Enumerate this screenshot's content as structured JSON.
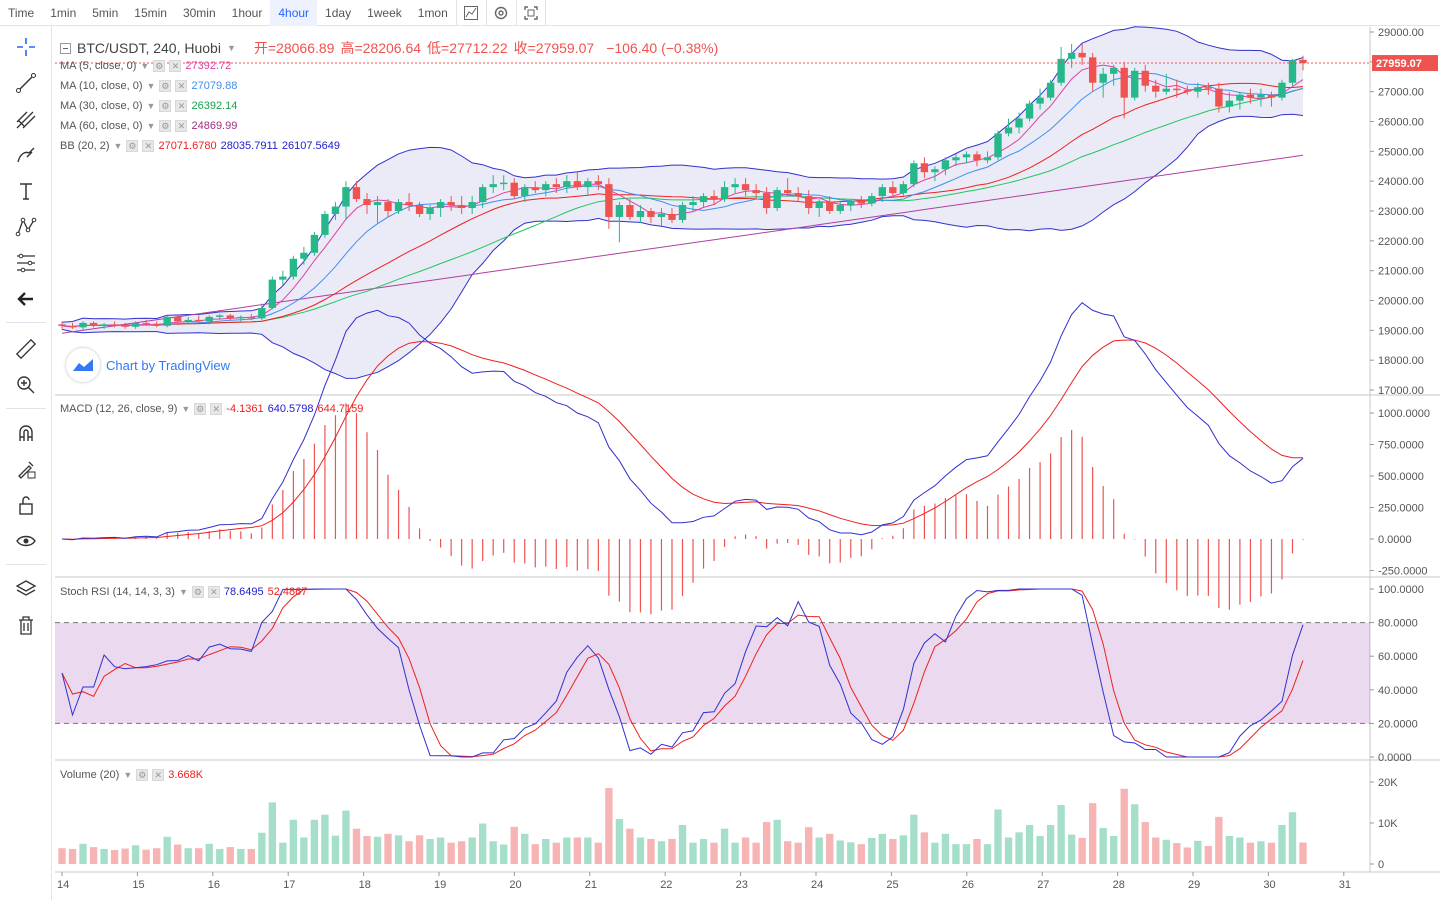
{
  "toolbar": {
    "time_label": "Time",
    "intervals": [
      "1min",
      "5min",
      "15min",
      "30min",
      "1hour",
      "4hour",
      "1day",
      "1week",
      "1mon"
    ],
    "active_interval": "4hour"
  },
  "sidebar": {
    "icons": [
      "crosshair-icon",
      "trend-line-icon",
      "pitchfork-icon",
      "brush-icon",
      "text-icon",
      "pattern-icon",
      "fib-icon",
      "back-arrow-icon",
      "ruler-icon",
      "zoom-in-icon",
      "magnet-icon",
      "lock-drawing-icon",
      "unlock-icon",
      "eye-icon",
      "layers-icon",
      "trash-icon"
    ]
  },
  "header": {
    "symbol": "BTC/USDT, 240, Huobi",
    "open_label": "开=28066.89",
    "high_label": "高=28206.64",
    "low_label": "低=27712.22",
    "close_label": "收=27959.07",
    "change": "−106.40 (−0.38%)"
  },
  "legends": {
    "ma5": {
      "label": "MA (5, close, 0)",
      "value": "27392.72",
      "color": "#e040a0"
    },
    "ma10": {
      "label": "MA (10, close, 0)",
      "value": "27079.88",
      "color": "#3f8fef"
    },
    "ma30": {
      "label": "MA (30, close, 0)",
      "value": "26392.14",
      "color": "#22c55e"
    },
    "ma60": {
      "label": "MA (60, close, 0)",
      "value": "24869.99",
      "color": "#a0307f"
    },
    "bb": {
      "label": "BB (20, 2)",
      "v1": "27071.6780",
      "v2": "28035.7911",
      "v3": "26107.5649",
      "c1": "#ef2020",
      "c2": "#2020d0",
      "c3": "#2020d0"
    },
    "macd": {
      "label": "MACD (12, 26, close, 9)",
      "v1": "-4.1361",
      "v2": "640.5798",
      "v3": "644.7159"
    },
    "stoch": {
      "label": "Stoch RSI (14, 14, 3, 3)",
      "v1": "78.6495",
      "v2": "52.4867"
    },
    "volume": {
      "label": "Volume (20)",
      "v1": "3.668K"
    }
  },
  "watermark": "Chart by TradingView",
  "last_price_label": "27959.07",
  "chart_data": [
    {
      "type": "candlestick",
      "name": "price",
      "ylim": [
        17000,
        29000
      ],
      "y_ticks": [
        "29000.00",
        "28000.00",
        "27000.00",
        "26000.00",
        "25000.00",
        "24000.00",
        "23000.00",
        "22000.00",
        "21000.00",
        "20000.00",
        "19000.00",
        "18000.00",
        "17000.00"
      ],
      "x_ticks": [
        "14",
        "15",
        "16",
        "17",
        "18",
        "19",
        "20",
        "21",
        "22",
        "23",
        "24",
        "25",
        "26",
        "27",
        "28",
        "29",
        "30",
        "31"
      ],
      "ohlc": [
        [
          19200,
          19300,
          19050,
          19150
        ],
        [
          19150,
          19250,
          19050,
          19100
        ],
        [
          19100,
          19300,
          19000,
          19250
        ],
        [
          19250,
          19300,
          19100,
          19150
        ],
        [
          19150,
          19250,
          19050,
          19200
        ],
        [
          19200,
          19300,
          19100,
          19180
        ],
        [
          19180,
          19250,
          19050,
          19120
        ],
        [
          19120,
          19300,
          19050,
          19250
        ],
        [
          19250,
          19350,
          19150,
          19220
        ],
        [
          19220,
          19300,
          19100,
          19150
        ],
        [
          19150,
          19500,
          19100,
          19450
        ],
        [
          19450,
          19500,
          19250,
          19300
        ],
        [
          19300,
          19450,
          19200,
          19350
        ],
        [
          19350,
          19500,
          19250,
          19300
        ],
        [
          19300,
          19500,
          19200,
          19450
        ],
        [
          19450,
          19550,
          19350,
          19500
        ],
        [
          19500,
          19550,
          19350,
          19400
        ],
        [
          19400,
          19500,
          19300,
          19450
        ],
        [
          19450,
          19550,
          19350,
          19400
        ],
        [
          19400,
          19900,
          19350,
          19750
        ],
        [
          19750,
          20800,
          19700,
          20700
        ],
        [
          20700,
          21000,
          20500,
          20800
        ],
        [
          20800,
          21500,
          20700,
          21400
        ],
        [
          21400,
          21800,
          21200,
          21600
        ],
        [
          21600,
          22300,
          21500,
          22200
        ],
        [
          22200,
          23000,
          22100,
          22900
        ],
        [
          22900,
          23300,
          22700,
          23150
        ],
        [
          23150,
          24000,
          22700,
          23800
        ],
        [
          23800,
          24000,
          23300,
          23400
        ],
        [
          23400,
          23600,
          22900,
          23200
        ],
        [
          23200,
          23500,
          22600,
          23300
        ],
        [
          23300,
          23400,
          22800,
          23000
        ],
        [
          23000,
          23400,
          22900,
          23300
        ],
        [
          23300,
          23600,
          23000,
          23200
        ],
        [
          23200,
          23300,
          22800,
          22900
        ],
        [
          22900,
          23200,
          22700,
          23100
        ],
        [
          23100,
          23400,
          22800,
          23300
        ],
        [
          23300,
          23500,
          23000,
          23200
        ],
        [
          23200,
          23500,
          22900,
          23100
        ],
        [
          23100,
          23500,
          22900,
          23300
        ],
        [
          23300,
          23900,
          23100,
          23800
        ],
        [
          23800,
          24200,
          23600,
          23900
        ],
        [
          23900,
          24200,
          23700,
          23950
        ],
        [
          23950,
          24100,
          23400,
          23500
        ],
        [
          23500,
          23900,
          23300,
          23800
        ],
        [
          23800,
          24000,
          23600,
          23700
        ],
        [
          23700,
          24000,
          23500,
          23900
        ],
        [
          23900,
          24100,
          23600,
          23800
        ],
        [
          23800,
          24200,
          23600,
          24000
        ],
        [
          24000,
          24300,
          23700,
          23800
        ],
        [
          23800,
          24100,
          23500,
          24000
        ],
        [
          24000,
          24200,
          23700,
          23900
        ],
        [
          23900,
          24100,
          22400,
          22800
        ],
        [
          22800,
          23300,
          21950,
          23200
        ],
        [
          23200,
          23400,
          22700,
          22800
        ],
        [
          22800,
          23200,
          22600,
          23000
        ],
        [
          23000,
          23100,
          22600,
          22800
        ],
        [
          22800,
          23100,
          22500,
          22900
        ],
        [
          22900,
          23100,
          22600,
          22700
        ],
        [
          22700,
          23300,
          22600,
          23200
        ],
        [
          23200,
          23500,
          23000,
          23300
        ],
        [
          23300,
          23600,
          23100,
          23500
        ],
        [
          23500,
          23700,
          23200,
          23400
        ],
        [
          23400,
          24000,
          23300,
          23800
        ],
        [
          23800,
          24100,
          23600,
          23900
        ],
        [
          23900,
          24100,
          23500,
          23700
        ],
        [
          23700,
          23900,
          23400,
          23600
        ],
        [
          23600,
          23800,
          22900,
          23100
        ],
        [
          23100,
          23800,
          23000,
          23700
        ],
        [
          23700,
          24100,
          23500,
          23600
        ],
        [
          23600,
          23800,
          23300,
          23500
        ],
        [
          23500,
          23700,
          22900,
          23100
        ],
        [
          23100,
          23400,
          22800,
          23300
        ],
        [
          23300,
          23500,
          22900,
          23000
        ],
        [
          23000,
          23300,
          22900,
          23200
        ],
        [
          23200,
          23400,
          23000,
          23350
        ],
        [
          23350,
          23500,
          23100,
          23250
        ],
        [
          23250,
          23600,
          23150,
          23500
        ],
        [
          23500,
          23900,
          23300,
          23800
        ],
        [
          23800,
          24000,
          23500,
          23600
        ],
        [
          23600,
          24000,
          23500,
          23900
        ],
        [
          23900,
          24700,
          23800,
          24600
        ],
        [
          24600,
          24800,
          24100,
          24300
        ],
        [
          24300,
          24500,
          24000,
          24400
        ],
        [
          24400,
          24800,
          24200,
          24700
        ],
        [
          24700,
          24900,
          24500,
          24800
        ],
        [
          24800,
          25000,
          24600,
          24900
        ],
        [
          24900,
          25000,
          24500,
          24700
        ],
        [
          24700,
          25000,
          24600,
          24800
        ],
        [
          24800,
          25700,
          24700,
          25600
        ],
        [
          25600,
          26100,
          25500,
          25800
        ],
        [
          25800,
          26300,
          25600,
          26100
        ],
        [
          26100,
          26700,
          26000,
          26600
        ],
        [
          26600,
          27100,
          26400,
          26800
        ],
        [
          26800,
          27400,
          26700,
          27300
        ],
        [
          27300,
          28500,
          27200,
          28100
        ],
        [
          28100,
          28600,
          27800,
          28300
        ],
        [
          28300,
          28600,
          27900,
          28150
        ],
        [
          28150,
          28300,
          27000,
          27300
        ],
        [
          27300,
          27800,
          26800,
          27600
        ],
        [
          27600,
          27900,
          27200,
          27800
        ],
        [
          27800,
          28000,
          26100,
          26800
        ],
        [
          26800,
          27800,
          26700,
          27700
        ],
        [
          27700,
          27900,
          27000,
          27200
        ],
        [
          27200,
          27400,
          26800,
          27000
        ],
        [
          27000,
          27600,
          26900,
          27100
        ],
        [
          27100,
          27400,
          26800,
          27050
        ],
        [
          27050,
          27200,
          26900,
          27000
        ],
        [
          27000,
          27300,
          26800,
          27150
        ],
        [
          27150,
          27300,
          26900,
          27100
        ],
        [
          27100,
          27300,
          26300,
          26500
        ],
        [
          26500,
          27000,
          26300,
          26700
        ],
        [
          26700,
          27000,
          26400,
          26900
        ],
        [
          26900,
          27100,
          26600,
          26800
        ],
        [
          26800,
          27100,
          26500,
          26900
        ],
        [
          26900,
          27000,
          26500,
          26800
        ],
        [
          26800,
          27400,
          26700,
          27300
        ],
        [
          27300,
          28100,
          27200,
          28066
        ],
        [
          28066,
          28206,
          27712,
          27959
        ]
      ],
      "ma5_last": 27392.72,
      "ma10_last": 27079.88,
      "ma30_last": 26392.14,
      "ma60_last": 24869.99,
      "bb_last": {
        "basis": 27071.678,
        "upper": 28035.7911,
        "lower": 26107.5649
      }
    },
    {
      "type": "line",
      "name": "MACD",
      "ylim": [
        -250,
        1000
      ],
      "y_ticks": [
        "1000.0000",
        "750.0000",
        "500.0000",
        "250.0000",
        "0.0000",
        "-250.0000"
      ],
      "series_last": {
        "hist": -4.1361,
        "macd": 640.5798,
        "signal": 644.7159
      }
    },
    {
      "type": "line",
      "name": "Stoch RSI",
      "ylim": [
        0,
        100
      ],
      "y_ticks": [
        "100.0000",
        "80.0000",
        "60.0000",
        "40.0000",
        "20.0000",
        "0.0000"
      ],
      "band": [
        20,
        80
      ],
      "series_last": {
        "k": 78.6495,
        "d": 52.4867
      }
    },
    {
      "type": "bar",
      "name": "Volume",
      "ylim": [
        0,
        22000
      ],
      "y_ticks": [
        "20K",
        "10K",
        "0"
      ],
      "last": 3668
    }
  ]
}
